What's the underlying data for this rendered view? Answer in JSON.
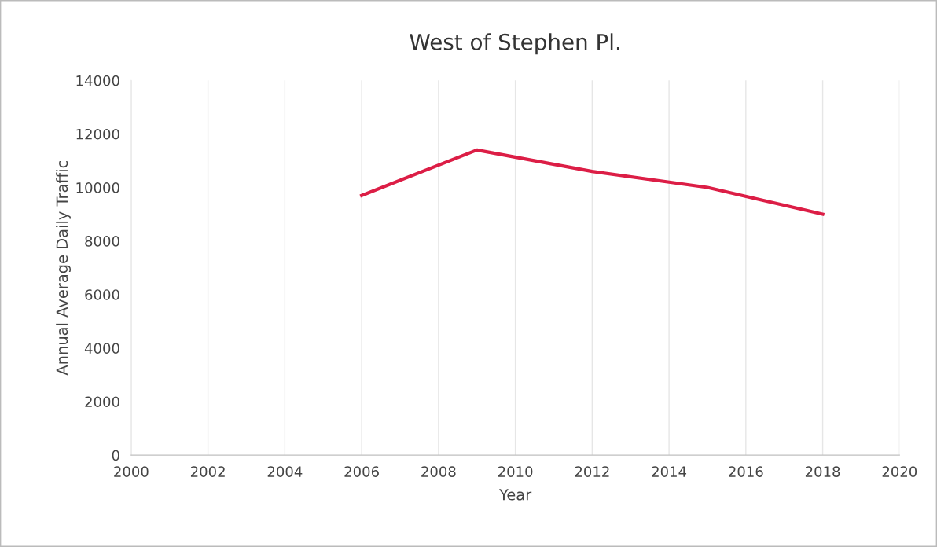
{
  "chart_data": {
    "type": "line",
    "title": "West of Stephen Pl.",
    "xlabel": "Year",
    "ylabel": "Annual Average Daily Traffic",
    "x": [
      2006,
      2009,
      2012,
      2015,
      2018
    ],
    "series": [
      {
        "color": "#dc1e46",
        "values": [
          9700,
          11400,
          10600,
          10000,
          9000
        ]
      }
    ],
    "xlim": [
      2000,
      2020
    ],
    "xticks": [
      2000,
      2002,
      2004,
      2006,
      2008,
      2010,
      2012,
      2014,
      2016,
      2018,
      2020
    ],
    "ylim": [
      0,
      14000
    ],
    "yticks": [
      0,
      2000,
      4000,
      6000,
      8000,
      10000,
      12000,
      14000
    ],
    "grid": "x",
    "legend": false,
    "marker": "none",
    "line_style": "solid"
  }
}
